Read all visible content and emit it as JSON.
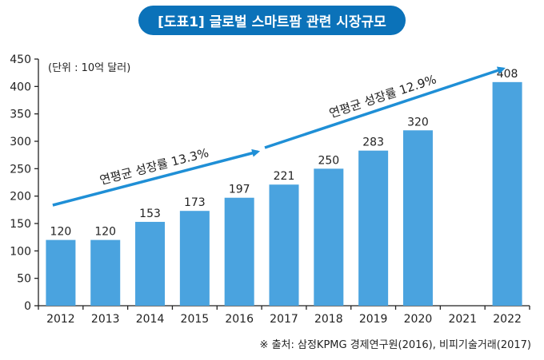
{
  "colors": {
    "bar": "#4aa3df",
    "arrow": "#1f8fd6",
    "title_bg": "#0b72b9",
    "axis": "#222222"
  },
  "chart_data": {
    "type": "bar",
    "title": "[도표1] 글로벌 스마트팜 관련 시장규모",
    "unit_label": "(단위 : 10억 달러)",
    "categories": [
      "2012",
      "2013",
      "2014",
      "2015",
      "2016",
      "2017",
      "2018",
      "2019",
      "2020",
      "2021",
      "2022"
    ],
    "values": [
      120,
      120,
      153,
      173,
      197,
      221,
      250,
      283,
      320,
      null,
      408
    ],
    "data_labels": [
      "120",
      "120",
      "153",
      "173",
      "197",
      "221",
      "250",
      "283",
      "320",
      "",
      "408"
    ],
    "ylim": [
      0,
      450
    ],
    "yticks": [
      0,
      50,
      100,
      150,
      200,
      250,
      300,
      350,
      400,
      450
    ],
    "annotations": [
      {
        "text": "연평균 성장률 13.3%",
        "from": "2012",
        "to": "2016"
      },
      {
        "text": "연평균 성장률 12.9%",
        "from": "2017",
        "to": "2022"
      }
    ],
    "grid": false,
    "legend": "none"
  },
  "source": "※ 출처: 삼정KPMG 경제연구원(2016), 비피기술거래(2017)"
}
